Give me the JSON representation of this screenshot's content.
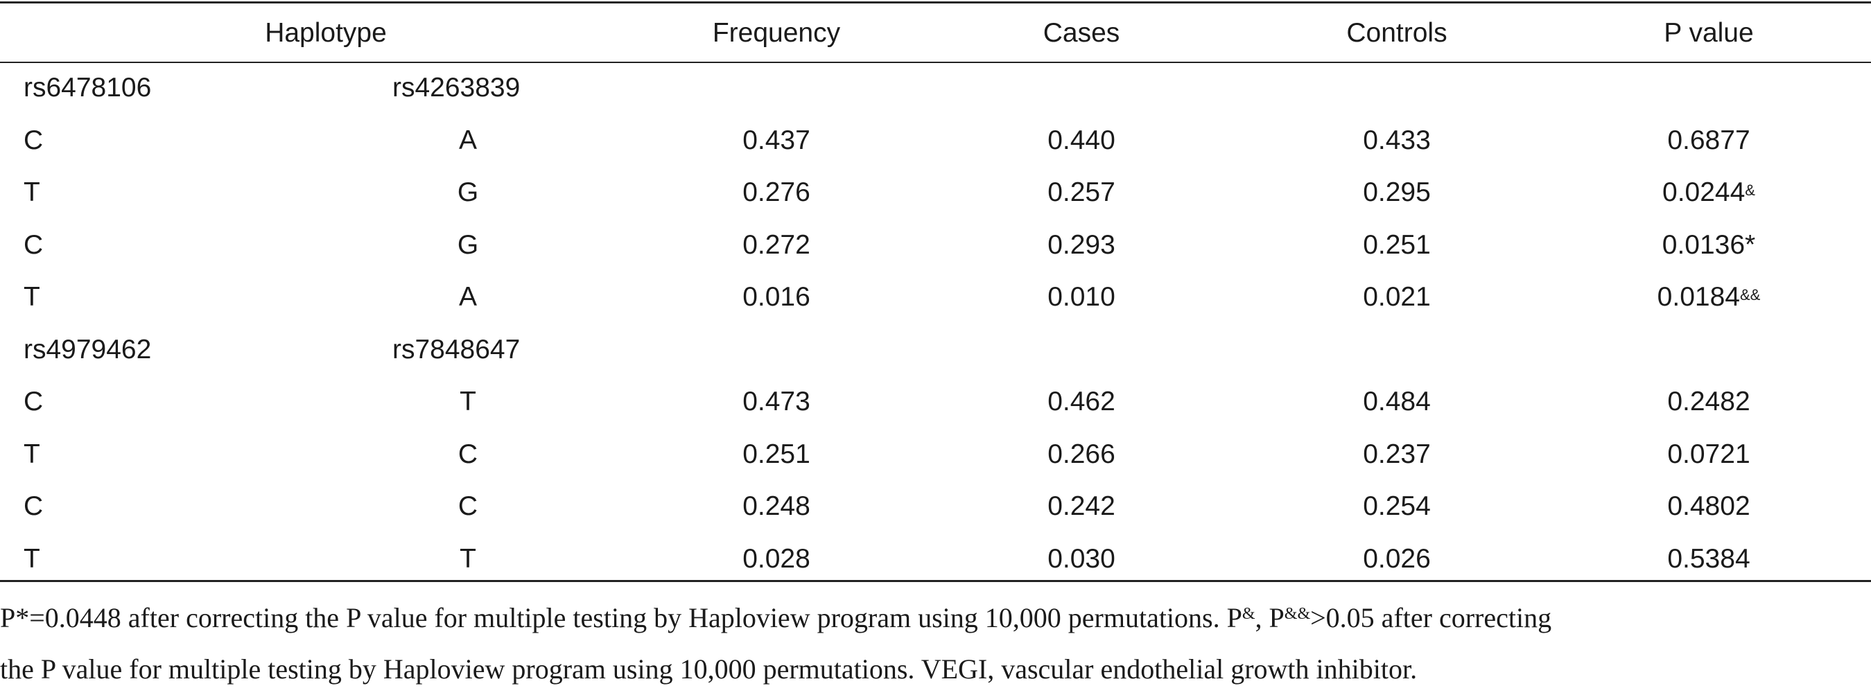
{
  "header": {
    "haplotype": "Haplotype",
    "frequency": "Frequency",
    "cases": "Cases",
    "controls": "Controls",
    "p_value": "P value"
  },
  "block1": {
    "snp1": "rs6478106",
    "snp2": "rs4263839",
    "rows": [
      {
        "a1": "C",
        "a2": "A",
        "freq": "0.437",
        "cases": "0.440",
        "controls": "0.433",
        "p": "0.6877",
        "mark": ""
      },
      {
        "a1": "T",
        "a2": "G",
        "freq": "0.276",
        "cases": "0.257",
        "controls": "0.295",
        "p": "0.0244",
        "mark": "&"
      },
      {
        "a1": "C",
        "a2": "G",
        "freq": "0.272",
        "cases": "0.293",
        "controls": "0.251",
        "p": "0.0136*",
        "mark": ""
      },
      {
        "a1": "T",
        "a2": "A",
        "freq": "0.016",
        "cases": "0.010",
        "controls": "0.021",
        "p": "0.0184",
        "mark": "&&"
      }
    ]
  },
  "block2": {
    "snp1": "rs4979462",
    "snp2": "rs7848647",
    "rows": [
      {
        "a1": "C",
        "a2": "T",
        "freq": "0.473",
        "cases": "0.462",
        "controls": "0.484",
        "p": "0.2482",
        "mark": ""
      },
      {
        "a1": "T",
        "a2": "C",
        "freq": "0.251",
        "cases": "0.266",
        "controls": "0.237",
        "p": "0.0721",
        "mark": ""
      },
      {
        "a1": "C",
        "a2": "C",
        "freq": "0.248",
        "cases": "0.242",
        "controls": "0.254",
        "p": "0.4802",
        "mark": ""
      },
      {
        "a1": "T",
        "a2": "T",
        "freq": "0.028",
        "cases": "0.030",
        "controls": "0.026",
        "p": "0.5384",
        "mark": ""
      }
    ]
  },
  "footnote": {
    "l1_a": "P*=0.0448 after correcting the P value for multiple testing by Haploview program using 10,000 permutations. P",
    "sup1": "&",
    "l1_b": ", P",
    "sup2": "&&",
    "l1_c": ">0.05 after correcting",
    "line2": "the P value for multiple testing by Haploview program using 10,000 permutations. VEGI, vascular endothelial growth inhibitor."
  }
}
